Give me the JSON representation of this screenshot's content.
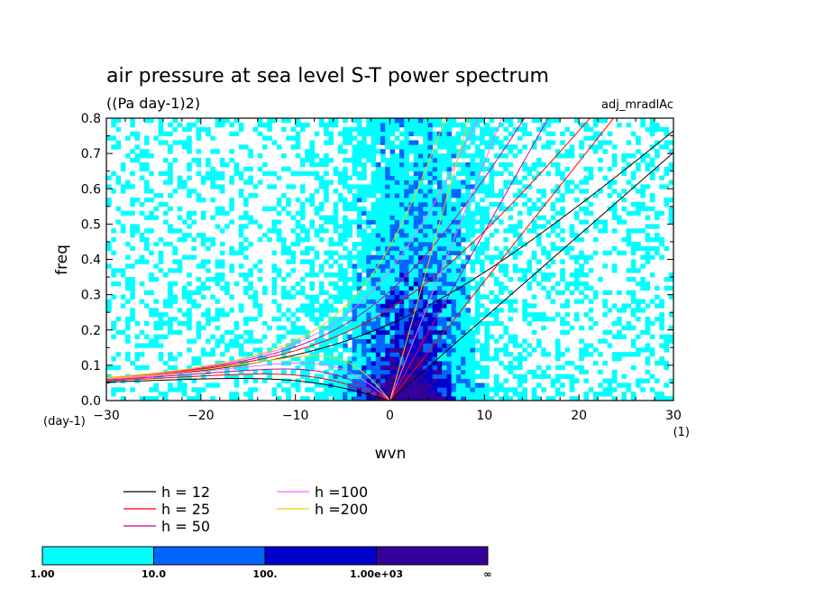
{
  "chart_data": {
    "type": "heatmap",
    "title": "air pressure at sea level S-T power spectrum",
    "subtitle": "((Pa day-1)2)",
    "annotation": "adj_mradlAc",
    "xlabel": "wvn",
    "x_unit": "(1)",
    "ylabel": "freq",
    "y_unit": "(day-1)",
    "xlim": [
      -30,
      30
    ],
    "ylim": [
      0,
      0.8
    ],
    "xticks": [
      "-30",
      "-20",
      "-10",
      "0",
      "10",
      "20",
      "30"
    ],
    "yticks": [
      "0.0",
      "0.1",
      "0.2",
      "0.3",
      "0.4",
      "0.5",
      "0.6",
      "0.7",
      "0.8"
    ],
    "dispersion_curves": [
      {
        "name": "h = 12",
        "color": "#000000"
      },
      {
        "name": "h = 25",
        "color": "#ff0000"
      },
      {
        "name": "h = 50",
        "color": "#cc0099"
      },
      {
        "name": "h =100",
        "color": "#ff66ff"
      },
      {
        "name": "h =200",
        "color": "#ffcc00"
      }
    ],
    "colorbar": {
      "levels": [
        "1.00",
        "10.0",
        "100.",
        "1.00e+03",
        "∞"
      ],
      "colors": [
        "#00ffff",
        "#0066ff",
        "#0000cc",
        "#330099"
      ]
    }
  }
}
